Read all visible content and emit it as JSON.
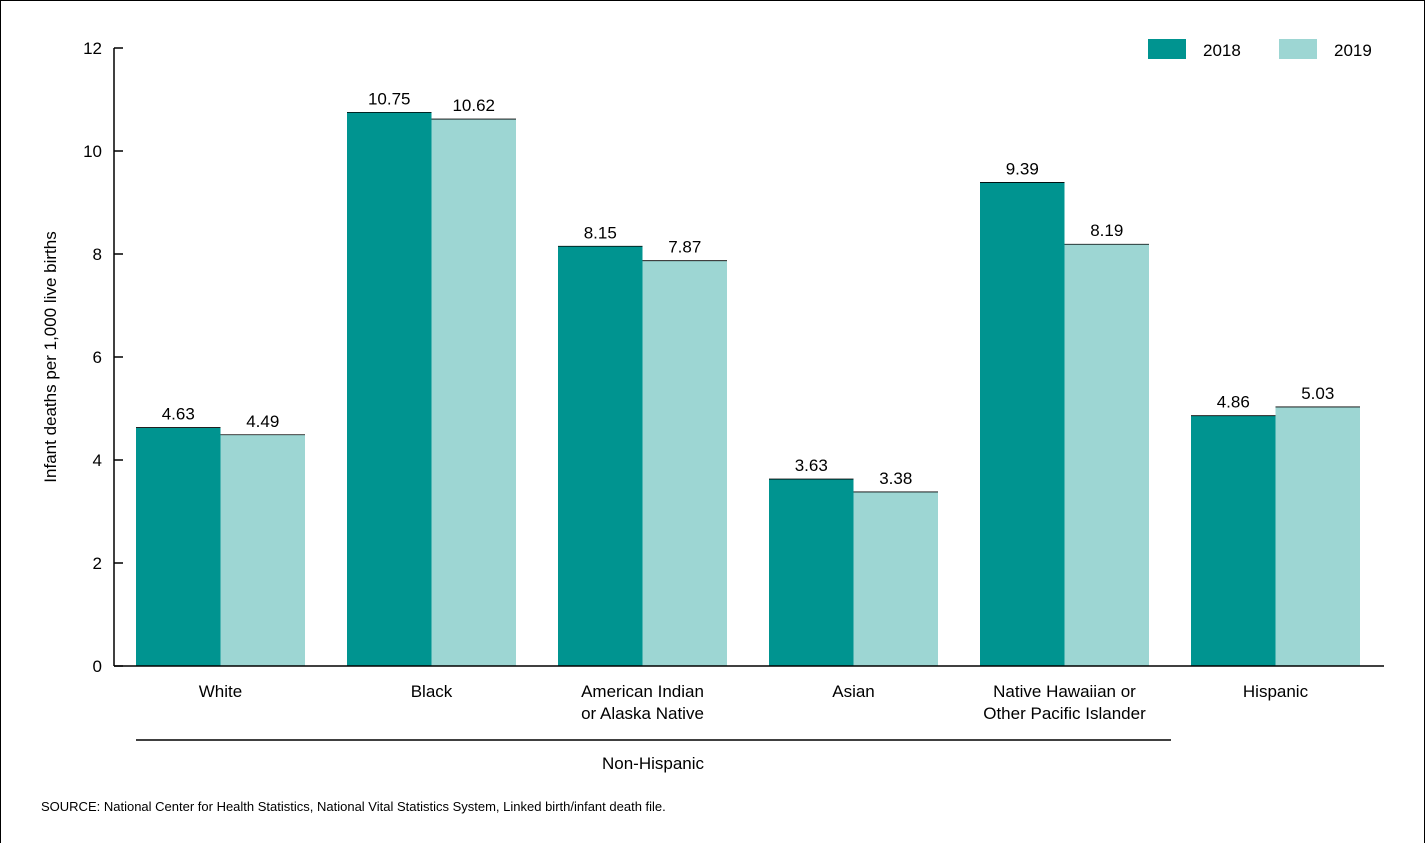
{
  "chart_data": {
    "type": "bar",
    "ylabel": "Infant deaths per 1,000 live births",
    "ylim": [
      0,
      12
    ],
    "yticks": [
      "0",
      "2",
      "4",
      "6",
      "8",
      "10",
      "12"
    ],
    "grid": false,
    "legend_position": "top-right",
    "categories": [
      [
        "White"
      ],
      [
        "Black"
      ],
      [
        "American Indian",
        "or Alaska Native"
      ],
      [
        "Asian"
      ],
      [
        "Native Hawaiian or",
        "Other Pacific Islander"
      ],
      [
        "Hispanic"
      ]
    ],
    "series": [
      {
        "name": "2018",
        "color": "#009490",
        "values": [
          4.63,
          10.75,
          8.15,
          3.63,
          9.39,
          4.86
        ],
        "labels": [
          "4.63",
          "10.75",
          "8.15",
          "3.63",
          "9.39",
          "4.86"
        ]
      },
      {
        "name": "2019",
        "color": "#9dd6d3",
        "values": [
          4.49,
          10.62,
          7.87,
          3.38,
          8.19,
          5.03
        ],
        "labels": [
          "4.49",
          "10.62",
          "7.87",
          "3.38",
          "8.19",
          "5.03"
        ]
      }
    ],
    "group_label": "Non-Hispanic",
    "source": "SOURCE: National Center for Health Statistics, National Vital Statistics System, Linked birth/infant death file."
  }
}
